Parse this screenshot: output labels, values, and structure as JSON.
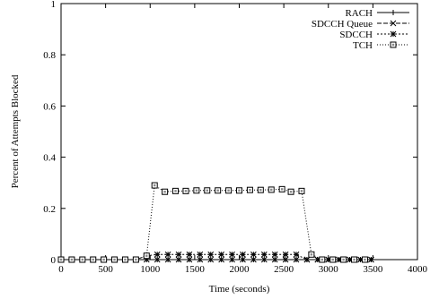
{
  "chart_data": {
    "type": "line",
    "xlabel": "Time (seconds)",
    "ylabel": "Percent of Attempts Blocked",
    "xlim": [
      0,
      4000
    ],
    "ylim": [
      0,
      1
    ],
    "x_ticks": [
      0,
      500,
      1000,
      1500,
      2000,
      2500,
      3000,
      3500,
      4000
    ],
    "y_ticks": [
      0,
      0.2,
      0.4,
      0.6,
      0.8,
      1
    ],
    "y_tick_labels": [
      "0",
      "0.2",
      "0.4",
      "0.6",
      "0.8",
      "1"
    ],
    "grid": false,
    "legend_position": "top-right",
    "series": [
      {
        "name": "RACH",
        "marker": "plus",
        "dash": "solid",
        "x": [
          0,
          120,
          240,
          360,
          480,
          600,
          720,
          840,
          960,
          1080,
          1200,
          1320,
          1440,
          1560,
          1680,
          1800,
          1920,
          2040,
          2160,
          2280,
          2400,
          2520,
          2640,
          2760,
          2880,
          3000,
          3120,
          3240,
          3360,
          3480
        ],
        "y": [
          0,
          0,
          0,
          0,
          0,
          0,
          0,
          0,
          0,
          0,
          0,
          0,
          0,
          0,
          0,
          0,
          0,
          0,
          0,
          0,
          0,
          0,
          0,
          0,
          0,
          0,
          0,
          0,
          0,
          0
        ]
      },
      {
        "name": "SDCCH Queue",
        "marker": "x",
        "dash": "5,2",
        "x": [
          0,
          120,
          240,
          360,
          480,
          600,
          720,
          840,
          960,
          1080,
          1200,
          1320,
          1440,
          1560,
          1680,
          1800,
          1920,
          2040,
          2160,
          2280,
          2400,
          2520,
          2640,
          2760,
          2880,
          3000,
          3120,
          3240,
          3360,
          3480
        ],
        "y": [
          0,
          0,
          0,
          0,
          0,
          0,
          0,
          0,
          0,
          0,
          0,
          0,
          0,
          0,
          0,
          0,
          0,
          0,
          0,
          0,
          0,
          0,
          0,
          0,
          0,
          0,
          0,
          0,
          0,
          0
        ]
      },
      {
        "name": "SDCCH",
        "marker": "star",
        "dash": "2,2",
        "x": [
          0,
          120,
          240,
          360,
          480,
          600,
          720,
          840,
          960,
          1080,
          1200,
          1320,
          1440,
          1560,
          1680,
          1800,
          1920,
          2040,
          2160,
          2280,
          2400,
          2520,
          2640,
          2760,
          2880,
          3000,
          3120,
          3240,
          3360,
          3480
        ],
        "y": [
          0,
          0,
          0,
          0,
          0,
          0,
          0,
          0,
          0.015,
          0.02,
          0.02,
          0.02,
          0.02,
          0.02,
          0.02,
          0.02,
          0.02,
          0.02,
          0.02,
          0.02,
          0.02,
          0.02,
          0.02,
          0,
          0,
          0,
          0,
          0,
          0,
          0
        ]
      },
      {
        "name": "TCH",
        "marker": "square",
        "dash": "1,2",
        "x": [
          0,
          120,
          240,
          360,
          480,
          600,
          720,
          840,
          960,
          1050,
          1165,
          1285,
          1400,
          1520,
          1640,
          1760,
          1880,
          2000,
          2120,
          2240,
          2360,
          2480,
          2580,
          2700,
          2810,
          2930,
          3050,
          3170,
          3290,
          3410
        ],
        "y": [
          0,
          0,
          0,
          0,
          0,
          0,
          0,
          0,
          0.015,
          0.29,
          0.265,
          0.268,
          0.268,
          0.27,
          0.27,
          0.27,
          0.27,
          0.27,
          0.272,
          0.272,
          0.273,
          0.275,
          0.265,
          0.268,
          0.02,
          0,
          0,
          0,
          0,
          0
        ]
      }
    ]
  }
}
